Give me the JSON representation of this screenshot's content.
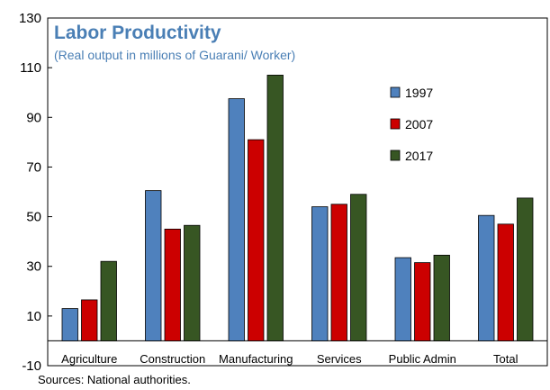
{
  "chart_data": {
    "type": "bar",
    "title": "Labor Productivity",
    "subtitle": "(Real output in millions of Guarani/ Worker)",
    "categories": [
      "Agriculture",
      "Construction",
      "Manufacturing",
      "Services",
      "Public Admin",
      "Total"
    ],
    "series": [
      {
        "name": "1997",
        "color": "#4f81bd",
        "values": [
          13,
          60.5,
          97.5,
          54,
          33.5,
          50.5
        ]
      },
      {
        "name": "2007",
        "color": "#cc0000",
        "values": [
          16.5,
          45,
          81,
          55,
          31.5,
          47
        ]
      },
      {
        "name": "2017",
        "color": "#375623",
        "values": [
          32,
          46.5,
          107,
          59,
          34.5,
          57.5
        ]
      }
    ],
    "ylim": [
      -10,
      130
    ],
    "yticks": [
      -10,
      10,
      30,
      50,
      70,
      90,
      110,
      130
    ],
    "grid": false,
    "legend_position": "top-right",
    "source": "Sources: National authorities."
  }
}
